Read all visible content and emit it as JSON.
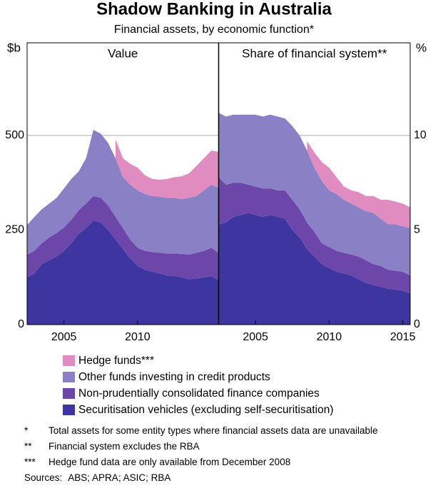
{
  "title": "Shadow Banking in Australia",
  "subtitle": "Financial assets, by economic function*",
  "chart_data": [
    {
      "type": "area",
      "title": "Value",
      "ylabel": "$b",
      "x": [
        2002.5,
        2003,
        2003.5,
        2004,
        2004.5,
        2005,
        2005.5,
        2006,
        2006.5,
        2007,
        2007.5,
        2008,
        2008.5,
        2009,
        2009.5,
        2010,
        2010.5,
        2011,
        2011.5,
        2012,
        2012.5,
        2013,
        2013.5,
        2014,
        2014.5,
        2015,
        2015.5
      ],
      "xlim": [
        2002.5,
        2015.5
      ],
      "xticks": [
        2005,
        2010
      ],
      "ylim": [
        0,
        745
      ],
      "yticks": [
        0,
        250,
        500
      ],
      "grid": true,
      "series": [
        {
          "name": "Hedge funds***",
          "color": "#e08cc0",
          "values": [
            null,
            null,
            null,
            null,
            null,
            null,
            null,
            null,
            null,
            null,
            null,
            null,
            50,
            50,
            55,
            60,
            50,
            45,
            45,
            50,
            55,
            60,
            65,
            80,
            85,
            90,
            95
          ]
        },
        {
          "name": "Other funds investing in credit products",
          "color": "#8a80c6",
          "values": [
            78,
            90,
            90,
            90,
            93,
            103,
            108,
            103,
            120,
            175,
            170,
            165,
            155,
            135,
            145,
            152,
            150,
            148,
            148,
            147,
            147,
            145,
            150,
            150,
            160,
            167,
            172
          ]
        },
        {
          "name": "Non-prudentially consolidated finance companies",
          "color": "#6c47a9",
          "values": [
            60,
            60,
            55,
            60,
            62,
            62,
            62,
            62,
            65,
            65,
            65,
            65,
            60,
            55,
            50,
            48,
            50,
            52,
            55,
            58,
            60,
            62,
            65,
            68,
            70,
            75,
            72
          ]
        },
        {
          "name": "Securitisation vehicles (excluding self-securitisation)",
          "color": "#3e36a0",
          "values": [
            125,
            135,
            160,
            170,
            180,
            195,
            215,
            240,
            255,
            275,
            270,
            250,
            225,
            200,
            175,
            155,
            145,
            140,
            135,
            130,
            128,
            125,
            120,
            122,
            125,
            128,
            118
          ]
        }
      ]
    },
    {
      "type": "area",
      "title": "Share of financial system**",
      "ylabel": "%",
      "x": [
        2002.5,
        2003,
        2003.5,
        2004,
        2004.5,
        2005,
        2005.5,
        2006,
        2006.5,
        2007,
        2007.5,
        2008,
        2008.5,
        2009,
        2009.5,
        2010,
        2010.5,
        2011,
        2011.5,
        2012,
        2012.5,
        2013,
        2013.5,
        2014,
        2014.5,
        2015,
        2015.5
      ],
      "xlim": [
        2002.5,
        2015.5
      ],
      "xticks": [
        2005,
        2010,
        2015
      ],
      "ylim": [
        0,
        14.9
      ],
      "yticks": [
        0,
        5,
        10
      ],
      "grid": true,
      "series": [
        {
          "color": "#e08cc0",
          "values": [
            null,
            null,
            null,
            null,
            null,
            null,
            null,
            null,
            null,
            null,
            null,
            null,
            0.5,
            0.8,
            1.0,
            1.2,
            0.9,
            0.7,
            0.7,
            0.8,
            0.8,
            0.9,
            1.0,
            1.3,
            1.2,
            1.2,
            1.1
          ]
        },
        {
          "color": "#8a80c6",
          "values": [
            3.4,
            3.6,
            3.6,
            3.6,
            3.7,
            3.8,
            3.8,
            3.9,
            3.9,
            3.8,
            3.9,
            3.9,
            3.8,
            3.4,
            3.3,
            3.0,
            3.0,
            2.8,
            2.7,
            2.6,
            2.6,
            2.7,
            2.5,
            2.4,
            2.45,
            2.4,
            2.5
          ]
        },
        {
          "color": "#6c47a9",
          "values": [
            2.5,
            2.0,
            1.8,
            1.7,
            1.5,
            1.5,
            1.5,
            1.4,
            1.4,
            1.5,
            1.6,
            1.5,
            1.4,
            1.3,
            1.1,
            1.1,
            1.1,
            1.1,
            1.1,
            1.2,
            1.2,
            1.1,
            1.1,
            1.0,
            1.0,
            1.0,
            0.95
          ]
        },
        {
          "color": "#3e36a0",
          "values": [
            5.3,
            5.4,
            5.7,
            5.8,
            5.9,
            5.8,
            5.7,
            5.8,
            5.7,
            5.6,
            5.0,
            4.6,
            4.0,
            3.6,
            3.2,
            3.0,
            2.8,
            2.7,
            2.6,
            2.4,
            2.2,
            2.1,
            2.0,
            1.9,
            1.85,
            1.8,
            1.65
          ]
        }
      ]
    }
  ],
  "notes": [
    {
      "marker": "*",
      "text": "Total assets for some entity types where financial assets data are unavailable"
    },
    {
      "marker": "**",
      "text": "Financial system excludes the RBA"
    },
    {
      "marker": "***",
      "text": "Hedge fund data are only available from December 2008"
    }
  ],
  "sources": {
    "label": "Sources:",
    "text": "ABS; APRA; ASIC; RBA"
  }
}
